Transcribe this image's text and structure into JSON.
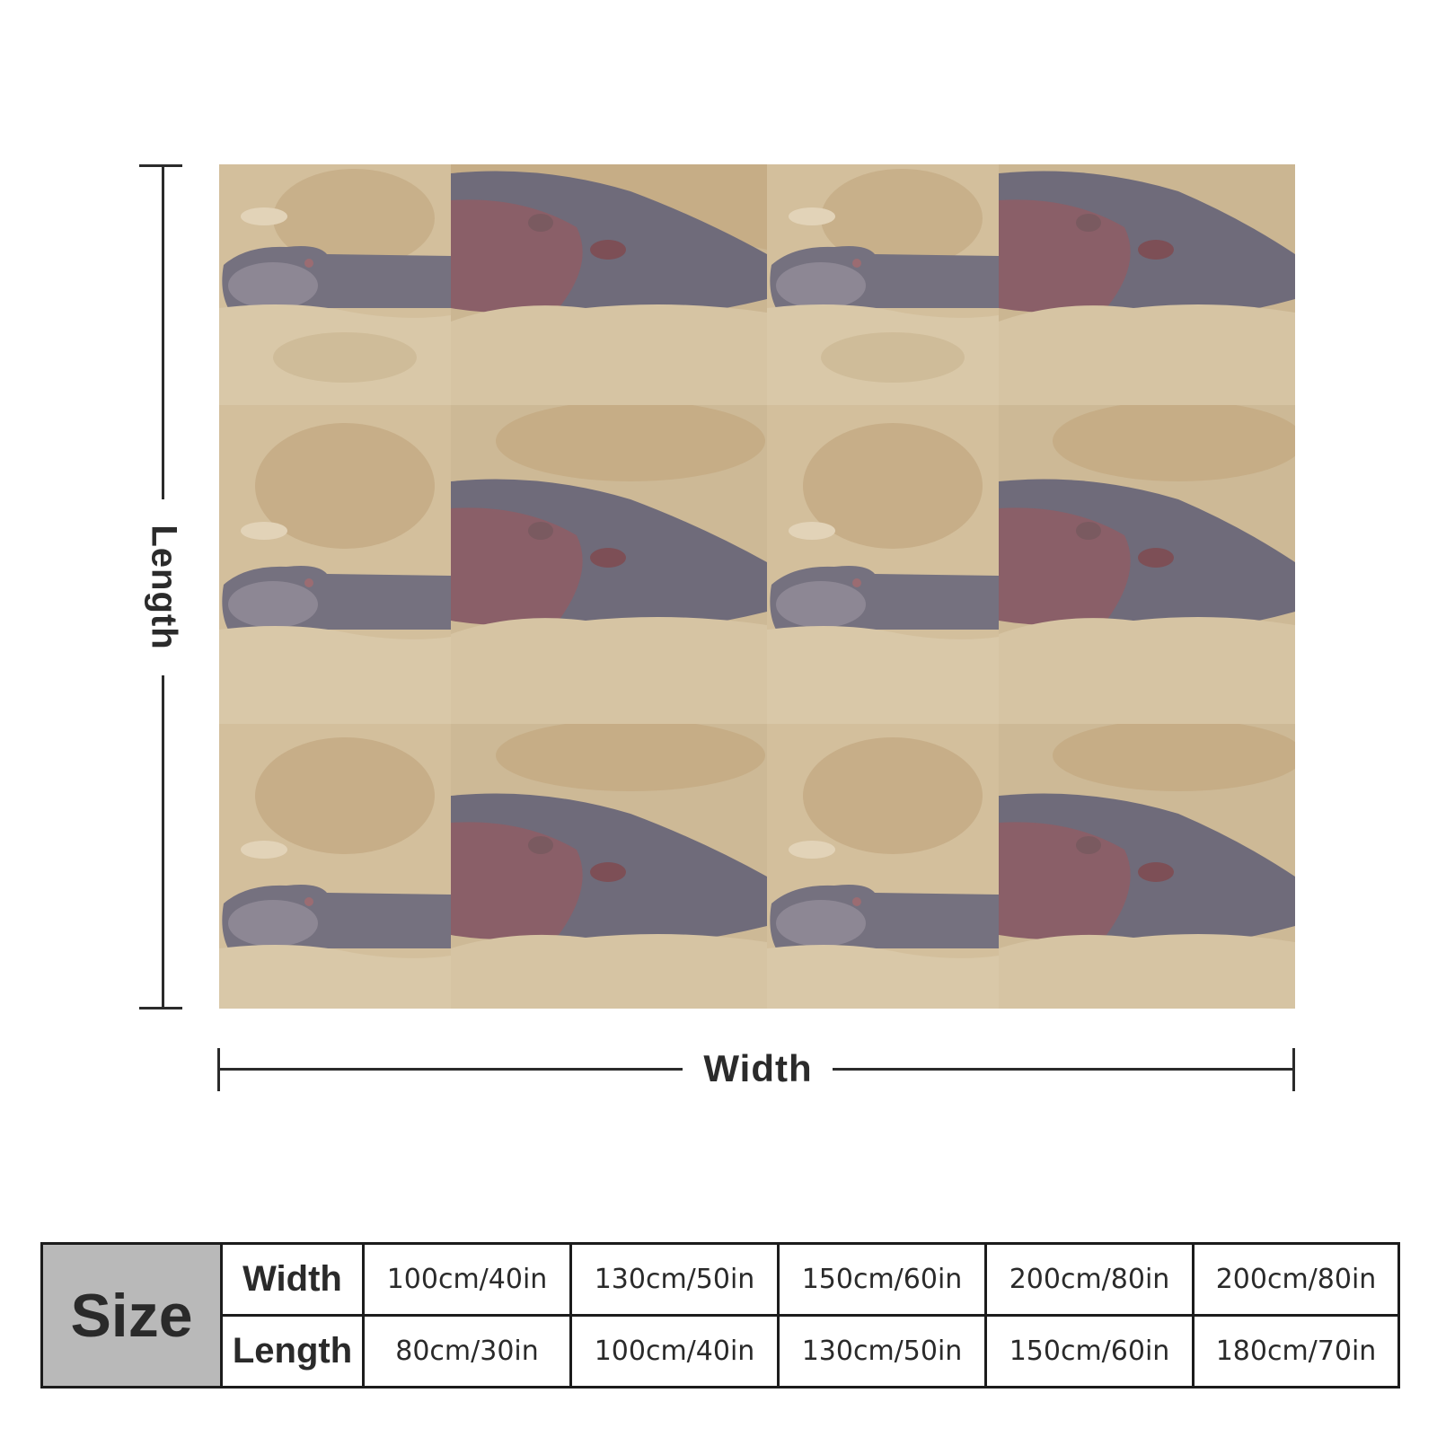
{
  "dimensions": {
    "length_label": "Length",
    "width_label": "Width"
  },
  "blanket": {
    "pattern": "tiled photo of resting hippos in sand",
    "grid": {
      "rows": 3,
      "columns": 4
    }
  },
  "size_table": {
    "header": "Size",
    "width_label": "Width",
    "length_label": "Length",
    "widths": [
      "100cm/40in",
      "130cm/50in",
      "150cm/60in",
      "200cm/80in",
      "200cm/80in"
    ],
    "lengths": [
      "80cm/30in",
      "100cm/40in",
      "130cm/50in",
      "150cm/60in",
      "180cm/70in"
    ]
  },
  "colors": {
    "sand": "#d4c09d",
    "rock": "#bda783",
    "hippo": "#6f6a78",
    "hippo_pink": "#8a5a62",
    "line": "#2b2b2b",
    "table_header_bg": "#b9b9b9"
  }
}
